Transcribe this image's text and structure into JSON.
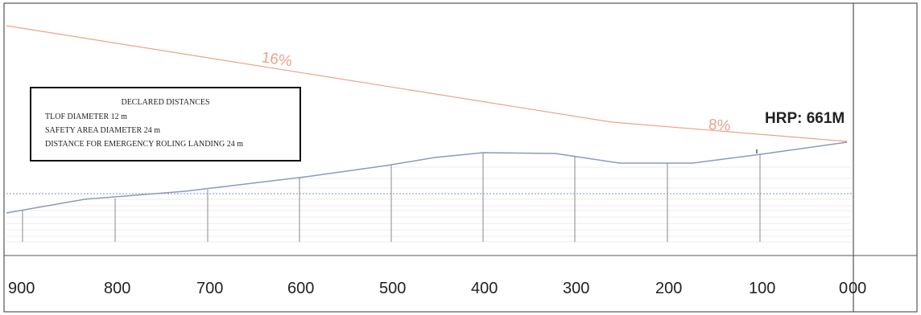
{
  "axis": {
    "ticks": [
      "900",
      "800",
      "700",
      "600",
      "500",
      "400",
      "300",
      "200",
      "100",
      "0",
      "00"
    ]
  },
  "slopes": [
    {
      "label": "16%",
      "color": "#e8a48c"
    },
    {
      "label": "8%",
      "color": "#e8a48c"
    }
  ],
  "hrp": {
    "label": "HRP: 661M"
  },
  "declared_distances": {
    "title": "DECLARED DISTANCES",
    "tlof": "TLOF DIAMETER 12 m",
    "safety_area": "SAFETY AREA DIAMETER 24 m",
    "emergency": "DISTANCE FOR EMERGENCY ROLING LANDING 24 m"
  },
  "colors": {
    "terrain": "#8a9bb8",
    "datum": "#7d8fd6",
    "approach": "#e8a48c",
    "frame": "#444444"
  }
}
